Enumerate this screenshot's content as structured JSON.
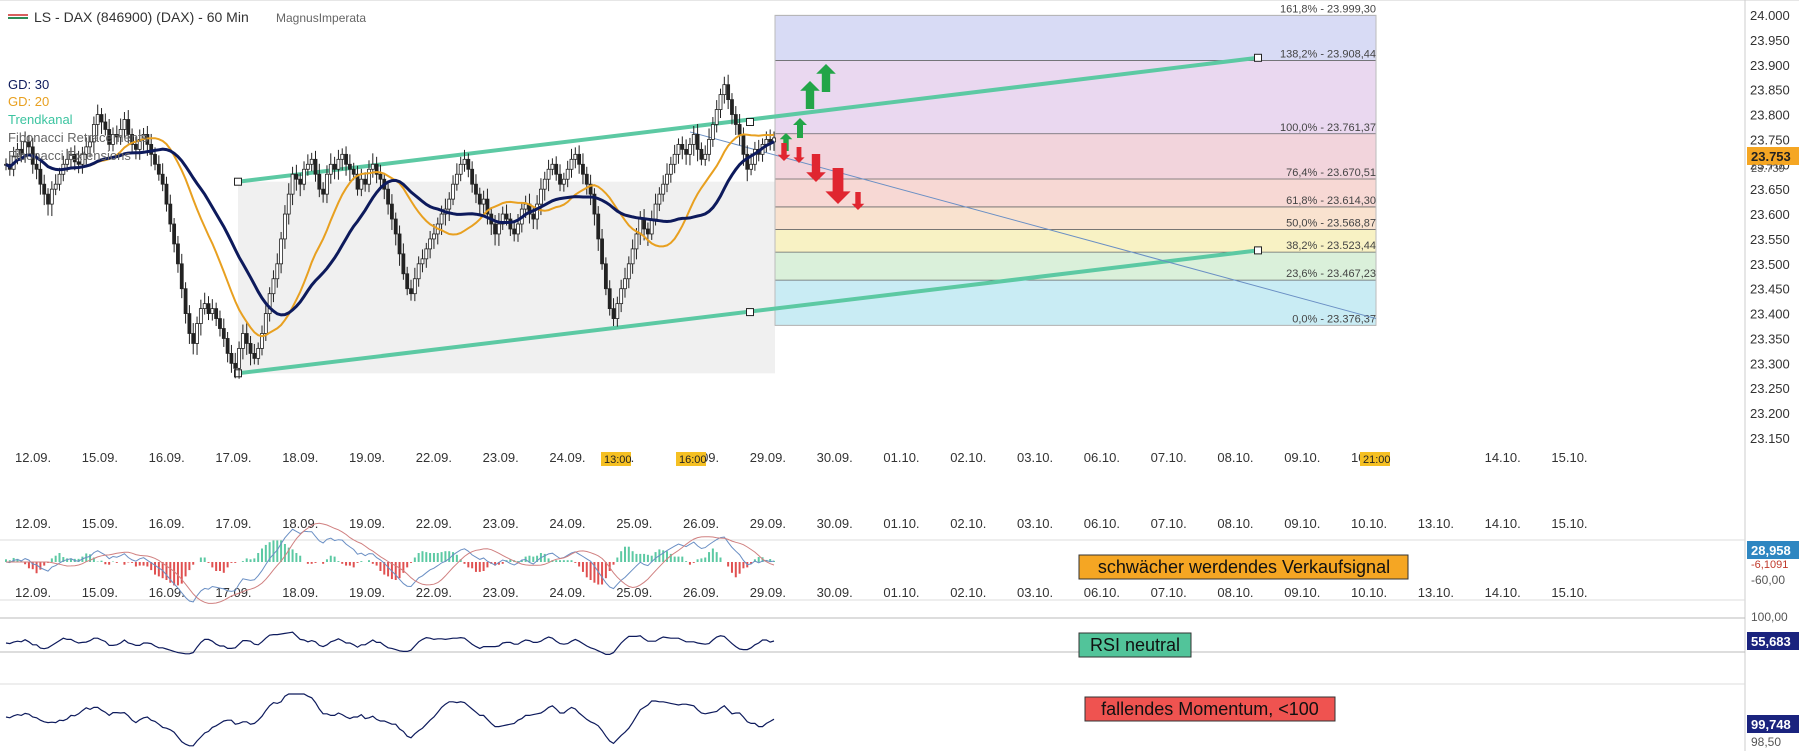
{
  "header": {
    "title": "LS - DAX (846900) (DAX) - 60 Min",
    "author": "MagnusImperata"
  },
  "legend": [
    {
      "label": "GD: 30",
      "color": "#0d1a5c"
    },
    {
      "label": "GD: 20",
      "color": "#e8a020"
    },
    {
      "label": "Trendkanal",
      "color": "#3cc4a0"
    },
    {
      "label": "Fibonacci Retracements",
      "color": "#555555"
    },
    {
      "label": "Fibonacci Extensions",
      "color": "#555555"
    }
  ],
  "x_dates": [
    "12.09.",
    "15.09.",
    "16.09.",
    "17.09.",
    "18.09.",
    "19.09.",
    "22.09.",
    "23.09.",
    "24.09.",
    "25.09.",
    "26.09.",
    "29.09.",
    "30.09.",
    "01.10.",
    "02.10.",
    "03.10.",
    "06.10.",
    "07.10.",
    "08.10.",
    "09.10.",
    "10.10.",
    "13.10.",
    "14.10.",
    "15.10."
  ],
  "time_markers": [
    {
      "label": "13:00",
      "after": "25."
    },
    {
      "label": "16:00",
      "after": "29.09."
    },
    {
      "label": "21:00",
      "after": "10."
    }
  ],
  "indicators": {
    "macd": {
      "value": "28,958",
      "value2": "-6,1091",
      "level": "-60,00",
      "note": "schwächer werdendes Verkaufsignal",
      "value_color": "#2e86c1",
      "note_color": "#f5a623"
    },
    "rsi": {
      "value": "55,683",
      "level": "100,00",
      "note": "RSI neutral",
      "value_color": "#1a237e",
      "note_color": "#52c49a"
    },
    "momentum": {
      "value": "99,748",
      "level": "98,50",
      "note": "fallendes Momentum, <100",
      "value_color": "#1a237e",
      "note_color": "#ef5350"
    }
  },
  "chart_data": {
    "type": "candlestick",
    "title": "LS - DAX (846900) (DAX) - 60 Min",
    "y_ticks": [
      "24.000",
      "23.950",
      "23.900",
      "23.850",
      "23.800",
      "23.750",
      "23.700",
      "23.650",
      "23.600",
      "23.550",
      "23.500",
      "23.450",
      "23.400",
      "23.350",
      "23.300",
      "23.250",
      "23.200",
      "23.150"
    ],
    "ylim": [
      23130,
      24015
    ],
    "last_price": "23.753",
    "last_price_2": "23.739",
    "fib_levels": [
      {
        "label": "161,8% - 23.999,30",
        "value": 23999.3,
        "fill": "#d8dbf5"
      },
      {
        "label": "138,2% - 23.908,44",
        "value": 23908.44,
        "fill": "#ead8f0"
      },
      {
        "label": "100,0% - 23.761,37",
        "value": 23761.37,
        "fill": "#f2d4dc"
      },
      {
        "label": "76,4% - 23.670,51",
        "value": 23670.51,
        "fill": "#f7d8d4"
      },
      {
        "label": "61,8% - 23.614,30",
        "value": 23614.3,
        "fill": "#f9e2cf"
      },
      {
        "label": "50,0% - 23.568,87",
        "value": 23568.87,
        "fill": "#f8f2c4"
      },
      {
        "label": "38,2% - 23.523,44",
        "value": 23523.44,
        "fill": "#daf0da"
      },
      {
        "label": "23,6% - 23.467,23",
        "value": 23467.23,
        "fill": "#c9ecf4"
      },
      {
        "label": "0,0% - 23.376,37",
        "value": 23376.37,
        "fill": ""
      }
    ],
    "trend_channel": {
      "upper": [
        [
          238,
          23665
        ],
        [
          750,
          23785
        ],
        [
          1258,
          23914
        ]
      ],
      "lower": [
        [
          238,
          23280
        ],
        [
          750,
          23403
        ],
        [
          1258,
          23527
        ]
      ]
    },
    "closes": [
      23700,
      23690,
      23715,
      23730,
      23720,
      23745,
      23735,
      23700,
      23690,
      23660,
      23640,
      23620,
      23650,
      23660,
      23680,
      23700,
      23710,
      23720,
      23705,
      23700,
      23720,
      23735,
      23745,
      23780,
      23800,
      23785,
      23770,
      23740,
      23760,
      23755,
      23770,
      23790,
      23760,
      23740,
      23730,
      23750,
      23760,
      23740,
      23720,
      23700,
      23680,
      23660,
      23620,
      23580,
      23540,
      23500,
      23450,
      23400,
      23360,
      23340,
      23380,
      23410,
      23420,
      23400,
      23410,
      23390,
      23370,
      23350,
      23320,
      23300,
      23290,
      23330,
      23360,
      23340,
      23320,
      23310,
      23330,
      23360,
      23400,
      23440,
      23470,
      23500,
      23550,
      23600,
      23640,
      23680,
      23670,
      23660,
      23690,
      23700,
      23710,
      23680,
      23650,
      23640,
      23680,
      23700,
      23690,
      23710,
      23720,
      23700,
      23690,
      23680,
      23650,
      23670,
      23660,
      23690,
      23700,
      23680,
      23670,
      23650,
      23620,
      23590,
      23560,
      23520,
      23480,
      23450,
      23440,
      23470,
      23500,
      23510,
      23530,
      23550,
      23560,
      23580,
      23600,
      23610,
      23630,
      23660,
      23680,
      23700,
      23710,
      23690,
      23660,
      23640,
      23620,
      23630,
      23600,
      23580,
      23560,
      23580,
      23600,
      23590,
      23570,
      23560,
      23580,
      23610,
      23620,
      23600,
      23590,
      23620,
      23650,
      23670,
      23690,
      23700,
      23680,
      23660,
      23670,
      23690,
      23710,
      23720,
      23700,
      23680,
      23660,
      23640,
      23600,
      23550,
      23500,
      23450,
      23410,
      23390,
      23420,
      23450,
      23470,
      23500,
      23530,
      23560,
      23590,
      23570,
      23560,
      23590,
      23620,
      23640,
      23660,
      23680,
      23700,
      23720,
      23740,
      23730,
      23720,
      23740,
      23760,
      23730,
      23710,
      23720,
      23750,
      23780,
      23810,
      23840,
      23860,
      23830,
      23800,
      23780,
      23760,
      23720,
      23690,
      23700,
      23730,
      23720,
      23740,
      23750,
      23745,
      23753
    ]
  }
}
